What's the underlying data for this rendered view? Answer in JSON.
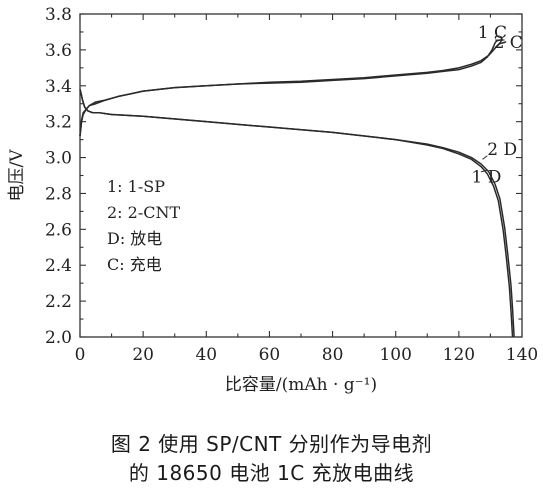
{
  "chart_data": {
    "type": "line",
    "xlabel": "比容量/(mAh · g⁻¹)",
    "ylabel": "电压/V",
    "xlim": [
      0,
      140
    ],
    "ylim": [
      2.0,
      3.8
    ],
    "xticks": [
      "0",
      "20",
      "40",
      "60",
      "80",
      "100",
      "120",
      "140"
    ],
    "yticks": [
      "2.0",
      "2.2",
      "2.4",
      "2.6",
      "2.8",
      "3.0",
      "3.2",
      "3.4",
      "3.6",
      "3.8"
    ],
    "grid": false,
    "legend_lines": [
      "1: 1-SP",
      "2: 2-CNT",
      "D: 放电",
      "C: 充电"
    ],
    "series": [
      {
        "name": "1 C",
        "x": [
          0,
          0.5,
          1,
          2,
          3,
          5,
          8,
          12,
          20,
          30,
          40,
          50,
          60,
          70,
          80,
          90,
          100,
          110,
          115,
          120,
          124,
          127,
          129,
          130.5,
          131.5,
          132,
          133,
          134
        ],
        "y": [
          3.12,
          3.2,
          3.24,
          3.27,
          3.29,
          3.3,
          3.32,
          3.34,
          3.37,
          3.39,
          3.4,
          3.41,
          3.415,
          3.42,
          3.43,
          3.44,
          3.455,
          3.47,
          3.48,
          3.49,
          3.51,
          3.53,
          3.56,
          3.6,
          3.64,
          3.65,
          3.655,
          3.655
        ]
      },
      {
        "name": "2 C",
        "x": [
          0,
          0.5,
          1,
          2,
          3,
          5,
          8,
          12,
          20,
          30,
          40,
          50,
          60,
          70,
          80,
          90,
          100,
          110,
          115,
          120,
          124,
          127,
          129.5,
          131,
          132,
          133,
          134,
          135
        ],
        "y": [
          3.12,
          3.21,
          3.25,
          3.27,
          3.29,
          3.31,
          3.32,
          3.34,
          3.37,
          3.39,
          3.4,
          3.41,
          3.42,
          3.425,
          3.435,
          3.445,
          3.46,
          3.475,
          3.485,
          3.5,
          3.52,
          3.54,
          3.57,
          3.6,
          3.62,
          3.635,
          3.64,
          3.645
        ]
      },
      {
        "name": "1 D",
        "x": [
          0,
          0.3,
          0.8,
          1.5,
          2.5,
          4,
          6,
          10,
          20,
          40,
          60,
          80,
          100,
          110,
          115,
          120,
          124,
          127,
          129,
          131,
          132.5,
          134,
          135,
          136,
          136.5,
          137
        ],
        "y": [
          3.38,
          3.36,
          3.32,
          3.28,
          3.26,
          3.25,
          3.25,
          3.24,
          3.23,
          3.2,
          3.17,
          3.14,
          3.1,
          3.07,
          3.05,
          3.02,
          2.99,
          2.95,
          2.91,
          2.84,
          2.76,
          2.6,
          2.45,
          2.28,
          2.15,
          2.0
        ]
      },
      {
        "name": "2 D",
        "x": [
          0,
          0.3,
          0.8,
          1.5,
          2.5,
          4,
          6,
          10,
          20,
          40,
          60,
          80,
          100,
          110,
          115,
          120,
          124,
          127,
          129.5,
          131.5,
          133,
          134.5,
          135.5,
          136.5,
          137,
          137.5
        ],
        "y": [
          3.38,
          3.36,
          3.32,
          3.28,
          3.26,
          3.25,
          3.25,
          3.24,
          3.23,
          3.2,
          3.17,
          3.14,
          3.1,
          3.075,
          3.055,
          3.03,
          3.0,
          2.965,
          2.92,
          2.85,
          2.77,
          2.61,
          2.46,
          2.29,
          2.16,
          2.0
        ]
      }
    ],
    "annotations": [
      {
        "text": "1 C",
        "x": 126,
        "y": 3.665
      },
      {
        "text": "2 C",
        "x": 131,
        "y": 3.61
      },
      {
        "text": "2 D",
        "x": 129,
        "y": 3.015
      },
      {
        "text": "1 D",
        "x": 124,
        "y": 2.86
      }
    ]
  },
  "caption": {
    "line1": "图 2   使用 SP/CNT 分别作为导电剂",
    "line2": "的 18650 电池 1C 充放电曲线"
  },
  "colors": {
    "line": "#2a2a2a",
    "axis": "#333333",
    "text": "#222222"
  }
}
